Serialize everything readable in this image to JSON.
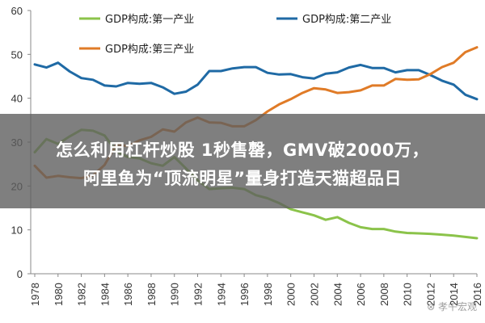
{
  "chart_data": {
    "type": "line",
    "title": "",
    "xlabel": "",
    "ylabel": "",
    "ylim": [
      0,
      60
    ],
    "y_ticks": [
      0,
      10,
      20,
      30,
      40,
      50,
      60
    ],
    "x_range": [
      1978,
      2016
    ],
    "x_ticks": [
      1978,
      1980,
      1982,
      1984,
      1986,
      1988,
      1990,
      1992,
      1994,
      1996,
      1998,
      2000,
      2002,
      2004,
      2006,
      2008,
      2010,
      2012,
      2014,
      2016
    ],
    "grid": false,
    "legend": [
      "top-left",
      "top-right",
      "top-left"
    ],
    "x": [
      1978,
      1979,
      1980,
      1981,
      1982,
      1983,
      1984,
      1985,
      1986,
      1987,
      1988,
      1989,
      1990,
      1991,
      1992,
      1993,
      1994,
      1995,
      1996,
      1997,
      1998,
      1999,
      2000,
      2001,
      2002,
      2003,
      2004,
      2005,
      2006,
      2007,
      2008,
      2009,
      2010,
      2011,
      2012,
      2013,
      2014,
      2015,
      2016
    ],
    "series": [
      {
        "name": "GDP构成:第一产业",
        "color": "#8bc34a",
        "values": [
          27.7,
          30.7,
          29.6,
          31.3,
          32.8,
          32.6,
          31.5,
          27.9,
          26.6,
          26.3,
          25.2,
          24.6,
          26.6,
          24.0,
          21.3,
          19.3,
          19.5,
          19.6,
          19.3,
          17.9,
          17.2,
          16.1,
          14.7,
          14.0,
          13.3,
          12.3,
          12.9,
          11.6,
          10.6,
          10.2,
          10.2,
          9.6,
          9.3,
          9.2,
          9.1,
          8.9,
          8.7,
          8.4,
          8.1
        ]
      },
      {
        "name": "GDP构成:第二产业",
        "color": "#1f6aa5",
        "values": [
          47.7,
          47.0,
          48.1,
          46.1,
          44.6,
          44.2,
          42.9,
          42.7,
          43.5,
          43.3,
          43.5,
          42.5,
          41.0,
          41.5,
          43.1,
          46.2,
          46.2,
          46.8,
          47.1,
          47.1,
          45.8,
          45.4,
          45.5,
          44.8,
          44.5,
          45.6,
          45.9,
          47.0,
          47.6,
          46.9,
          46.9,
          45.9,
          46.4,
          46.4,
          45.3,
          44.0,
          43.1,
          40.8,
          39.8
        ]
      },
      {
        "name": "GDP构成:第三产业",
        "color": "#e07b27",
        "values": [
          24.6,
          21.9,
          22.3,
          22.0,
          21.8,
          22.4,
          24.8,
          29.4,
          29.1,
          30.4,
          31.2,
          32.9,
          32.4,
          34.5,
          35.6,
          34.5,
          34.4,
          33.6,
          33.6,
          35.0,
          37.0,
          38.6,
          39.8,
          41.2,
          42.3,
          42.0,
          41.2,
          41.4,
          41.8,
          42.9,
          42.9,
          44.4,
          44.2,
          44.3,
          45.5,
          47.1,
          48.1,
          50.5,
          51.6
        ]
      }
    ]
  },
  "headline": {
    "line1": "怎么利用杠杆炒股 1秒售罄，GMV破2000万，",
    "line2": "阿里鱼为“顶流明星”量身打造天猫超品日"
  },
  "watermark": "⊗ 孝午宏观"
}
